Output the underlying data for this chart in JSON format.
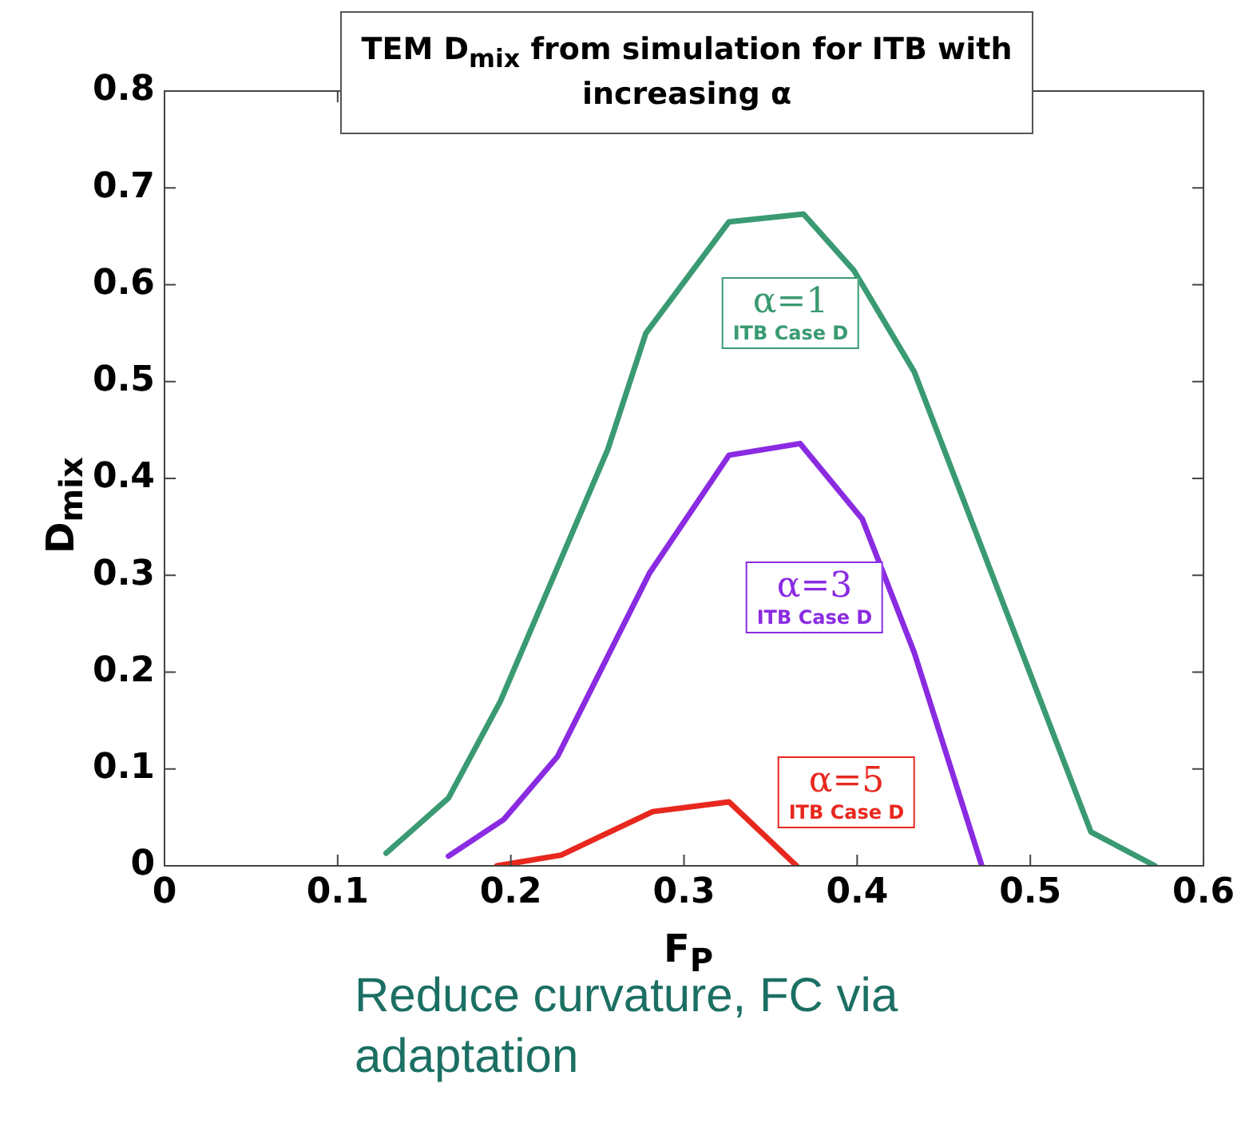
{
  "chart_data": {
    "type": "line",
    "title": "TEM D$_{mix}$ from simulation for ITB with increasing α",
    "xlabel": "F$_{P}$",
    "ylabel": "D$_{mix}$",
    "xlim": [
      0,
      0.6
    ],
    "xticks": [
      0,
      0.1,
      0.2,
      0.3,
      0.4,
      0.5,
      0.6
    ],
    "ylim": [
      0,
      0.8
    ],
    "yticks": [
      0,
      0.1,
      0.2,
      0.3,
      0.4,
      0.5,
      0.6,
      0.7,
      0.8
    ],
    "grid": false,
    "legend": false,
    "marker": "none",
    "line_style": "solid",
    "series": [
      {
        "name": "α=1",
        "color": "#3a9a72",
        "x": [
          0.128,
          0.164,
          0.194,
          0.256,
          0.278,
          0.326,
          0.369,
          0.398,
          0.433,
          0.535,
          0.572
        ],
        "values": [
          0.013,
          0.07,
          0.17,
          0.43,
          0.55,
          0.665,
          0.673,
          0.615,
          0.51,
          0.035,
          0
        ]
      },
      {
        "name": "α=3",
        "color": "#8a2be2",
        "x": [
          0.164,
          0.196,
          0.227,
          0.28,
          0.326,
          0.367,
          0.403,
          0.433,
          0.472
        ],
        "values": [
          0.01,
          0.048,
          0.113,
          0.302,
          0.424,
          0.436,
          0.358,
          0.22,
          0
        ]
      },
      {
        "name": "α=5",
        "color": "#e8281e",
        "x": [
          0.192,
          0.229,
          0.282,
          0.326,
          0.365
        ],
        "values": [
          0,
          0.011,
          0.056,
          0.066,
          0
        ]
      }
    ],
    "annotations": [
      "ITB Case D",
      "ITB Case D",
      "ITB Case D",
      "Reduce curvature, FC via adaptation"
    ]
  }
}
